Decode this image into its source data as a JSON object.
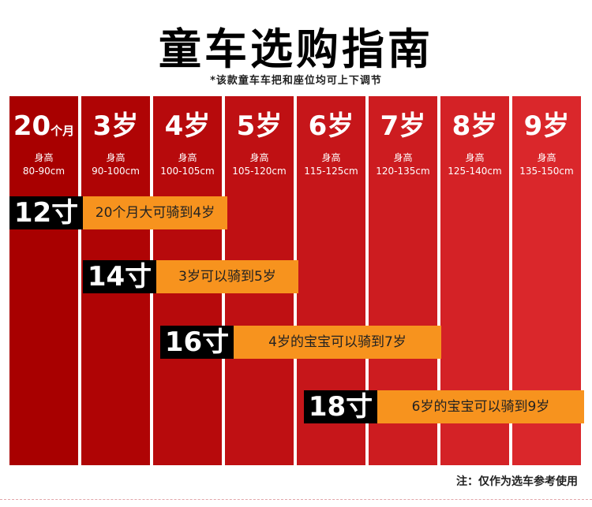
{
  "title": "童车选购指南",
  "subtitle": "*该款童车车把和座位均可上下调节",
  "height_label": "身高",
  "columns": [
    {
      "age": "20",
      "unit": "个月",
      "range": "80-90cm",
      "color": "#a80000"
    },
    {
      "age": "3",
      "unit": "岁",
      "range": "90-100cm",
      "color": "#af0405"
    },
    {
      "age": "4",
      "unit": "岁",
      "range": "100-105cm",
      "color": "#b70a0c"
    },
    {
      "age": "5",
      "unit": "岁",
      "range": "105-120cm",
      "color": "#bf1013"
    },
    {
      "age": "6",
      "unit": "岁",
      "range": "115-125cm",
      "color": "#c6161a"
    },
    {
      "age": "7",
      "unit": "岁",
      "range": "120-135cm",
      "color": "#cd1c20"
    },
    {
      "age": "8",
      "unit": "岁",
      "range": "125-140cm",
      "color": "#d42226"
    },
    {
      "age": "9",
      "unit": "岁",
      "range": "135-150cm",
      "color": "#da272b"
    }
  ],
  "bars": [
    {
      "size": "12寸",
      "text": "20个月大可骑到4岁"
    },
    {
      "size": "14寸",
      "text": "3岁可以骑到5岁"
    },
    {
      "size": "16寸",
      "text": "4岁的宝宝可以骑到7岁"
    },
    {
      "size": "18寸",
      "text": "6岁的宝宝可以骑到9岁"
    }
  ],
  "note": "注：仅作为选车参考使用",
  "colors": {
    "bar_fill": "#f7931e",
    "bar_label": "#000000"
  }
}
